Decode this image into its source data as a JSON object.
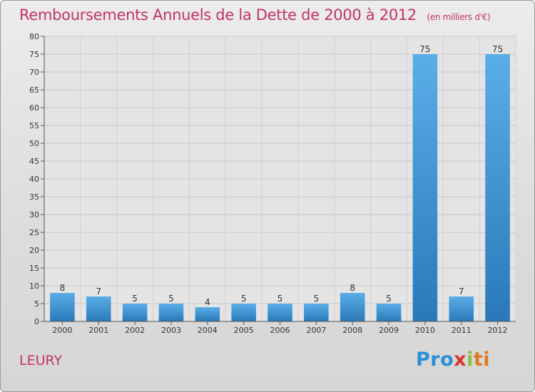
{
  "chart_data": {
    "type": "bar",
    "title": "Remboursements Annuels de la Dette de 2000 à 2012",
    "unit_note": "(en milliers d'€)",
    "categories": [
      "2000",
      "2001",
      "2002",
      "2003",
      "2004",
      "2005",
      "2006",
      "2007",
      "2008",
      "2009",
      "2010",
      "2011",
      "2012"
    ],
    "values": [
      8,
      7,
      5,
      5,
      4,
      5,
      5,
      5,
      8,
      5,
      75,
      7,
      75
    ],
    "ylim": [
      0,
      80
    ],
    "yticks": [
      0,
      5,
      10,
      15,
      20,
      25,
      30,
      35,
      40,
      45,
      50,
      55,
      60,
      65,
      70,
      75,
      80
    ],
    "xlabel": "",
    "ylabel": "",
    "grid": true,
    "bar_color_top": "#5aaee8",
    "bar_color_bottom": "#2a78b8"
  },
  "footer": {
    "city": "LEURY",
    "logo_parts": [
      "Pro",
      "x",
      "i",
      "ti"
    ]
  }
}
